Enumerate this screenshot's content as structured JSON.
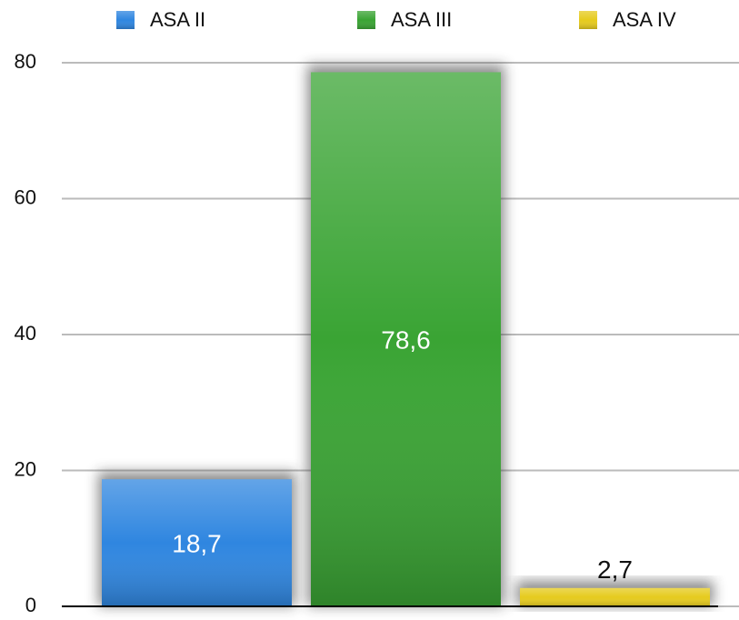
{
  "chart_data": {
    "type": "bar",
    "categories": [
      null
    ],
    "series": [
      {
        "name": "ASA II",
        "color": "#2f86e0",
        "values": [
          18.7
        ],
        "value_labels": [
          "18,7"
        ]
      },
      {
        "name": "ASA III",
        "color": "#3aa434",
        "values": [
          78.6
        ],
        "value_labels": [
          "78,6"
        ]
      },
      {
        "name": "ASA IV",
        "color": "#e6cb1e",
        "values": [
          2.7
        ],
        "value_labels": [
          "2,7"
        ]
      }
    ],
    "ylim": [
      0,
      80
    ],
    "yticks": [
      0,
      20,
      40,
      60,
      80
    ],
    "grid": true,
    "legend": "top"
  }
}
